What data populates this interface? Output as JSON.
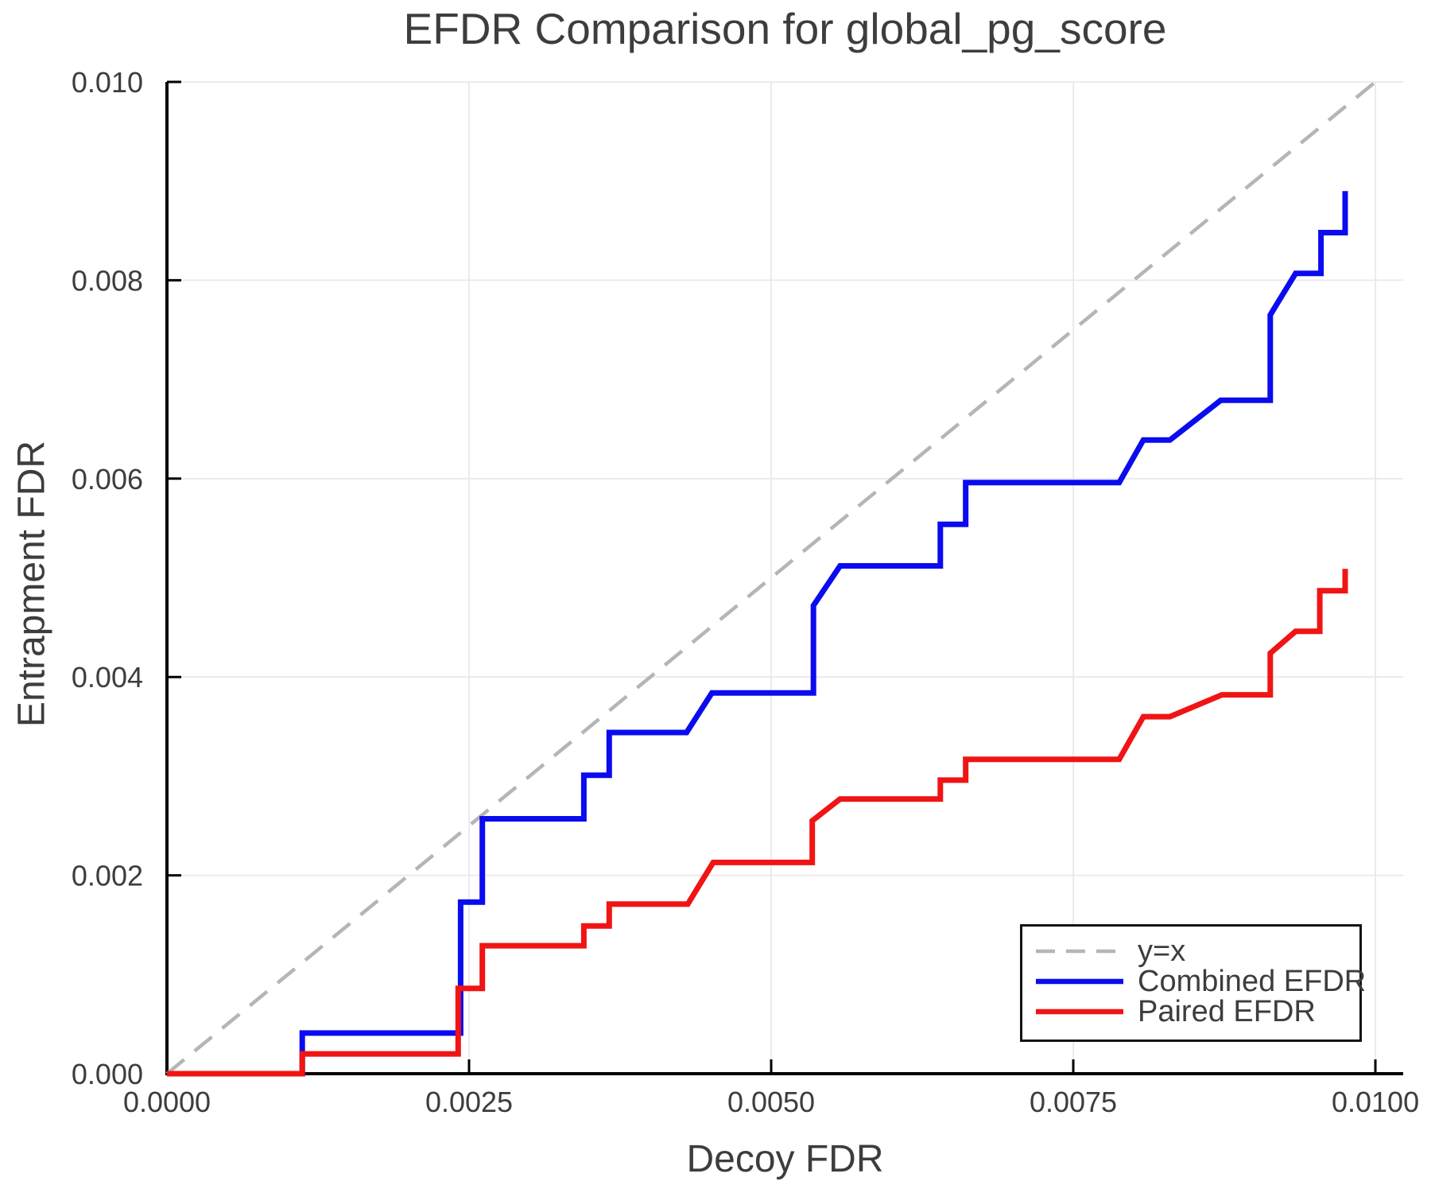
{
  "figure": {
    "title": "EFDR Comparison for global_pg_score"
  },
  "chart_data": {
    "type": "line",
    "title": "EFDR Comparison for global_pg_score",
    "xlabel": "Decoy FDR",
    "ylabel": "Entrapment FDR",
    "xlim": [
      0.0,
      0.01023
    ],
    "ylim": [
      0.0,
      0.01
    ],
    "x_ticks": [
      0.0,
      0.0025,
      0.005,
      0.0075,
      0.01
    ],
    "x_tick_labels": [
      "0.0000",
      "0.0025",
      "0.0050",
      "0.0075",
      "0.0100"
    ],
    "y_ticks": [
      0.0,
      0.002,
      0.004,
      0.006,
      0.008,
      0.01
    ],
    "y_tick_labels": [
      "0.000",
      "0.002",
      "0.004",
      "0.006",
      "0.008",
      "0.010"
    ],
    "grid": true,
    "background": "#ffffff",
    "grid_color": "#e9e9e9",
    "spine_color": "#000000",
    "text_color": "#3d3d3d",
    "legend": {
      "position": "lower-right",
      "entries": [
        "y=x",
        "Combined EFDR",
        "Paired EFDR"
      ]
    },
    "series": [
      {
        "name": "y=x",
        "color": "#b5b5b5",
        "dash": true,
        "width": 4.5,
        "points": [
          [
            0.0,
            0.0
          ],
          [
            0.01,
            0.01
          ]
        ]
      },
      {
        "name": "Combined EFDR",
        "color": "#0b0bf0",
        "dash": false,
        "width": 7,
        "points": [
          [
            0.0,
            0.0
          ],
          [
            0.00112,
            0.0
          ],
          [
            0.00112,
            0.00041
          ],
          [
            0.00243,
            0.00041
          ],
          [
            0.00243,
            0.00173
          ],
          [
            0.00261,
            0.00173
          ],
          [
            0.00261,
            0.00257
          ],
          [
            0.00345,
            0.00257
          ],
          [
            0.00345,
            0.00301
          ],
          [
            0.00366,
            0.00301
          ],
          [
            0.00366,
            0.00344
          ],
          [
            0.0043,
            0.00344
          ],
          [
            0.00451,
            0.00384
          ],
          [
            0.00535,
            0.00384
          ],
          [
            0.00535,
            0.00472
          ],
          [
            0.00557,
            0.00512
          ],
          [
            0.0064,
            0.00512
          ],
          [
            0.0064,
            0.00554
          ],
          [
            0.00661,
            0.00554
          ],
          [
            0.00661,
            0.00596
          ],
          [
            0.00788,
            0.00596
          ],
          [
            0.00808,
            0.00639
          ],
          [
            0.0083,
            0.00639
          ],
          [
            0.00872,
            0.00679
          ],
          [
            0.00913,
            0.00679
          ],
          [
            0.00913,
            0.00765
          ],
          [
            0.00934,
            0.00807
          ],
          [
            0.00955,
            0.00807
          ],
          [
            0.00955,
            0.00848
          ],
          [
            0.00975,
            0.00848
          ],
          [
            0.00975,
            0.0089
          ]
        ]
      },
      {
        "name": "Paired EFDR",
        "color": "#f01414",
        "dash": false,
        "width": 7,
        "points": [
          [
            0.0,
            0.0
          ],
          [
            0.00112,
            0.0
          ],
          [
            0.00112,
            0.0002
          ],
          [
            0.00241,
            0.0002
          ],
          [
            0.00241,
            0.00086
          ],
          [
            0.00261,
            0.00086
          ],
          [
            0.00261,
            0.00129
          ],
          [
            0.00345,
            0.00129
          ],
          [
            0.00345,
            0.00149
          ],
          [
            0.00366,
            0.00149
          ],
          [
            0.00366,
            0.00171
          ],
          [
            0.00431,
            0.00171
          ],
          [
            0.00452,
            0.00213
          ],
          [
            0.00534,
            0.00213
          ],
          [
            0.00534,
            0.00255
          ],
          [
            0.00557,
            0.00277
          ],
          [
            0.0064,
            0.00277
          ],
          [
            0.0064,
            0.00296
          ],
          [
            0.00661,
            0.00296
          ],
          [
            0.00661,
            0.00317
          ],
          [
            0.00788,
            0.00317
          ],
          [
            0.00808,
            0.0036
          ],
          [
            0.0083,
            0.0036
          ],
          [
            0.00873,
            0.00382
          ],
          [
            0.00913,
            0.00382
          ],
          [
            0.00913,
            0.00424
          ],
          [
            0.00934,
            0.00446
          ],
          [
            0.00954,
            0.00446
          ],
          [
            0.00954,
            0.00487
          ],
          [
            0.00975,
            0.00487
          ],
          [
            0.00975,
            0.00509
          ]
        ]
      }
    ]
  }
}
